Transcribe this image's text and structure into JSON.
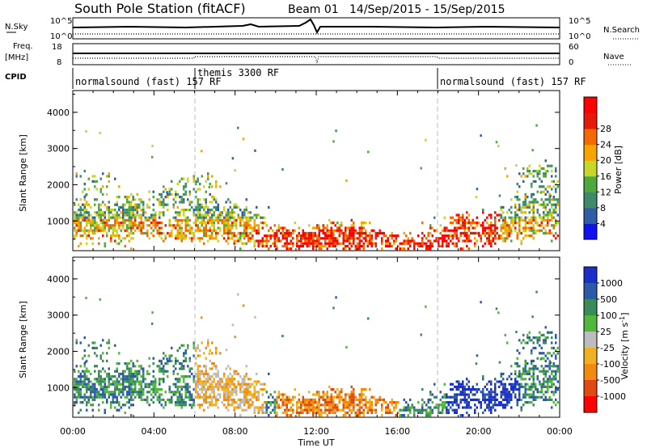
{
  "header": {
    "station": "South Pole Station (fitACF)",
    "beam": "Beam 01",
    "date_range": "14/Sep/2015 - 15/Sep/2015"
  },
  "strip_labels": {
    "nsky": "N.Sky",
    "nsky_tick_top": "10^5",
    "nsky_tick_bottom": "10^0",
    "freq_line1": "Freq.",
    "freq_line2": "[MHz]",
    "freq_tick_top": "18",
    "freq_tick_bottom": "8",
    "cpid": "CPID",
    "nsearch": "N.Search",
    "nsearch_tick_top": "10^5",
    "nsearch_tick_bottom": "10^0",
    "nave": "Nave",
    "nave_tick_top": "60",
    "nave_tick_bottom": "0"
  },
  "cpid_modes": [
    "normalsound (fast) 157 RF",
    "themis 3300 RF",
    "normalsound (fast) 157 RF"
  ],
  "chart_data": [
    {
      "type": "heatmap",
      "name": "power",
      "title": "",
      "xlabel": "",
      "ylabel": "Slant Range [km]",
      "x_ticks": [
        "00:00",
        "04:00",
        "08:00",
        "12:00",
        "16:00",
        "20:00",
        "00:00"
      ],
      "xlim_hours": [
        0,
        24
      ],
      "y_ticks": [
        1000,
        2000,
        3000,
        4000
      ],
      "ylim": [
        180,
        4600
      ],
      "colorbar_label": "Power [dB]",
      "colorbar_ticks": [
        "4",
        "8",
        "12",
        "16",
        "20",
        "24",
        "28"
      ],
      "colors": [
        "#1010f0",
        "#2f5ea6",
        "#3f8a6a",
        "#4fa83e",
        "#c8d62a",
        "#f5a500",
        "#f36a00",
        "#e61a0a",
        "#ff0000"
      ]
    },
    {
      "type": "heatmap",
      "name": "velocity",
      "title": "",
      "xlabel": "Time UT",
      "ylabel": "Slant Range [km]",
      "x_ticks": [
        "00:00",
        "04:00",
        "08:00",
        "12:00",
        "16:00",
        "20:00",
        "00:00"
      ],
      "xlim_hours": [
        0,
        24
      ],
      "y_ticks": [
        1000,
        2000,
        3000,
        4000
      ],
      "ylim": [
        180,
        4600
      ],
      "colorbar_label": "Velocity [m s^-1]",
      "colorbar_ticks": [
        "1000",
        "500",
        "100",
        "25",
        "-25",
        "-100",
        "-500",
        "-1000"
      ],
      "colors": [
        "#1a2ec8",
        "#2b5aa8",
        "#3a8a5a",
        "#50b83a",
        "#bdbdbd",
        "#f0b020",
        "#f28a10",
        "#e04a10",
        "#ff0000"
      ]
    }
  ]
}
